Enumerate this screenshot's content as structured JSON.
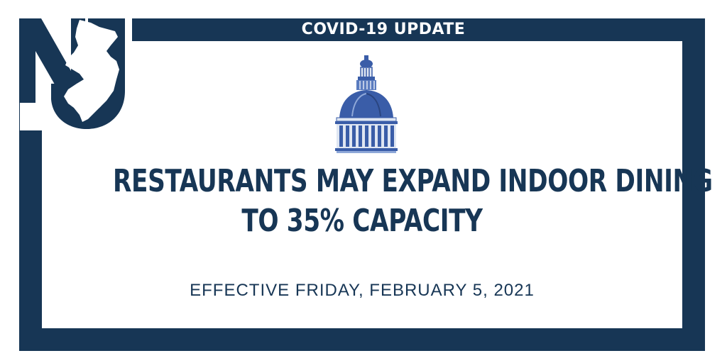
{
  "banner": {
    "header": "COVID-19 UPDATE",
    "headline_line1": "RESTAURANTS MAY EXPAND INDOOR DINING",
    "headline_line2": "TO 35% CAPACITY",
    "effective": "EFFECTIVE FRIDAY, FEBRUARY 5, 2021"
  },
  "logo": {
    "icon": "nj-state-logo-icon"
  },
  "dome": {
    "icon": "capitol-dome-icon"
  },
  "colors": {
    "navy": "#173655",
    "dome_blue": "#3a5da8",
    "white": "#ffffff"
  }
}
